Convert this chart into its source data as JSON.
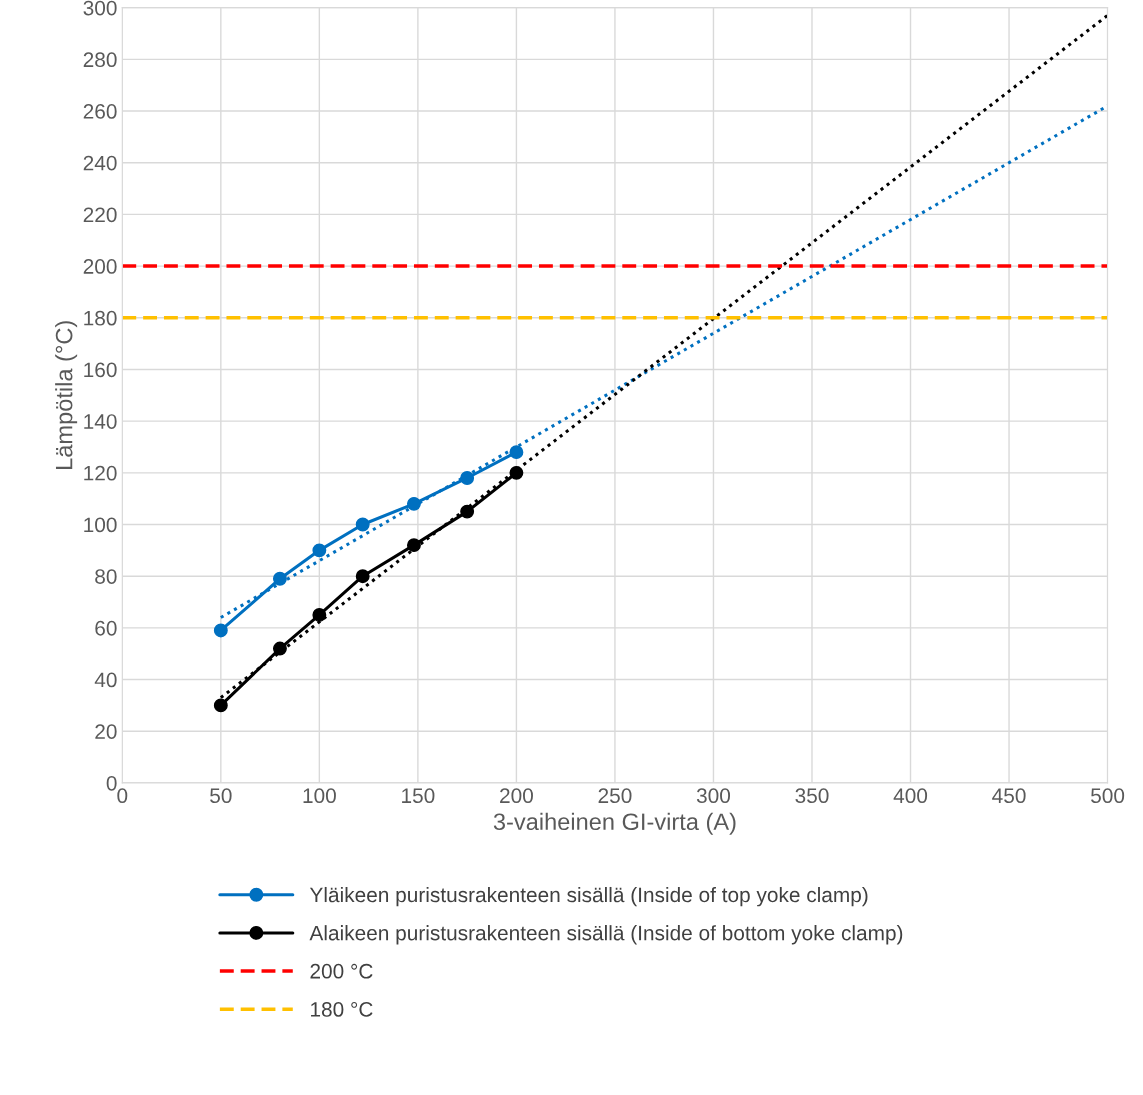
{
  "chart_data": {
    "type": "line",
    "xlabel": "3-vaiheinen GI-virta (A)",
    "ylabel": "Lämpötila (°C)",
    "xlim": [
      0,
      500
    ],
    "xticks": [
      0,
      50,
      100,
      150,
      200,
      250,
      300,
      350,
      400,
      450,
      500
    ],
    "ylim": [
      0,
      300
    ],
    "yticks": [
      0,
      20,
      40,
      60,
      80,
      100,
      120,
      140,
      160,
      180,
      200,
      220,
      240,
      260,
      280,
      300
    ],
    "grid": true,
    "legend": "bottom",
    "marker": "circle",
    "line_style": "solid",
    "series": [
      {
        "name": "Yläikeen puristusrakenteen sisällä (Inside of top yoke clamp)",
        "color": "#0070c0",
        "x": [
          50,
          80,
          100,
          122,
          148,
          175,
          200
        ],
        "values": [
          59,
          79,
          90,
          100,
          108,
          118,
          128
        ]
      },
      {
        "name": "Alaikeen puristusrakenteen sisällä (Inside of bottom yoke clamp)",
        "color": "#000000",
        "x": [
          50,
          80,
          100,
          122,
          148,
          175,
          200
        ],
        "values": [
          30,
          52,
          65,
          80,
          92,
          105,
          120
        ]
      },
      {
        "type": "line",
        "color": "#0070c0",
        "x": [
          50,
          500
        ],
        "values": [
          64,
          262
        ],
        "marker": "none",
        "line_style": "dotted"
      },
      {
        "type": "line",
        "color": "#000000",
        "x": [
          50,
          500
        ],
        "values": [
          33,
          297
        ],
        "marker": "none",
        "line_style": "dotted"
      }
    ],
    "ref_lines": [
      {
        "axis": "y",
        "value": 200,
        "label": "200 °C",
        "color": "#ff0000",
        "line_style": "dashed"
      },
      {
        "axis": "y",
        "value": 180,
        "label": "180 °C",
        "color": "#ffc000",
        "line_style": "dashed"
      }
    ]
  }
}
